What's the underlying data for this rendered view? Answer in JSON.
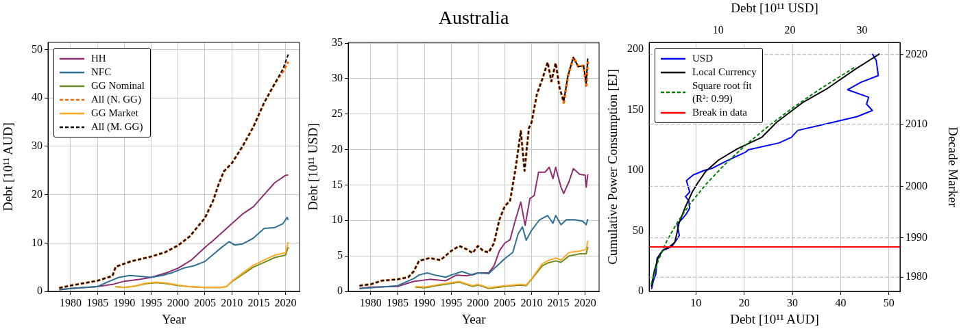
{
  "chart_data": [
    {
      "type": "line",
      "xlabel": "Year",
      "ylabel": "Debt [10¹¹ AUD]",
      "xlim": [
        1975.8,
        2022.6
      ],
      "xticks": [
        1980,
        1985,
        1990,
        1995,
        2000,
        2005,
        2010,
        2015,
        2020
      ],
      "ylim": [
        0,
        51.5
      ],
      "yticks": [
        0,
        10,
        20,
        30,
        40,
        50
      ],
      "grid": true,
      "legend": "top left",
      "marker": "none",
      "series": [
        {
          "name": "HH",
          "color": "#8e2c70",
          "line_style": "solid",
          "x": [
            1977.9,
            1980,
            1985,
            1988,
            1990,
            1993,
            1995,
            1998,
            2000,
            2002.5,
            2005,
            2006.5,
            2008,
            2010,
            2012,
            2014,
            2016,
            2018,
            2020,
            2020.5
          ],
          "values": [
            0.3,
            0.6,
            1.0,
            1.5,
            2.1,
            2.5,
            2.9,
            3.9,
            4.8,
            6.5,
            9.1,
            10.5,
            12,
            14,
            16,
            17.5,
            20,
            22.5,
            24,
            24.1
          ]
        },
        {
          "name": "NFC",
          "color": "#2e7090",
          "line_style": "solid",
          "x": [
            1977.9,
            1980,
            1985,
            1987,
            1989,
            1991,
            1993,
            1995,
            1997,
            1999,
            2001,
            2003,
            2005,
            2006.5,
            2008,
            2009.5,
            2010.5,
            2012,
            2014,
            2016,
            2018,
            2019.5,
            2020.3,
            2020.5
          ],
          "values": [
            0.4,
            0.6,
            1.0,
            2.0,
            2.9,
            3.3,
            3.1,
            2.9,
            3.3,
            3.9,
            4.8,
            5.3,
            6.2,
            7.6,
            9,
            10.3,
            9.6,
            9.8,
            11,
            13,
            13.2,
            14,
            15.3,
            14.8
          ]
        },
        {
          "name": "GG Nominal",
          "color": "#6b8e23",
          "line_style": "solid",
          "x": [
            1988.3,
            1990,
            1992,
            1994,
            1996,
            1998,
            2000,
            2002,
            2005,
            2008,
            2009,
            2010,
            2012,
            2014,
            2016,
            2018,
            2020,
            2020.5
          ],
          "values": [
            1.0,
            0.8,
            1.1,
            1.6,
            1.8,
            1.6,
            1.2,
            1.0,
            0.8,
            0.8,
            1.0,
            2.0,
            3.5,
            5,
            6,
            7,
            7.5,
            9.2
          ]
        },
        {
          "name": "All (N. GG)",
          "color": "#ff6600",
          "line_style": "dashed",
          "x": [
            1977.9,
            1980,
            1985,
            1987.8,
            1988.4,
            1991.2,
            1995,
            1997.6,
            2000,
            2002.2,
            2005,
            2006.5,
            2007.5,
            2008.5,
            2010,
            2012,
            2014,
            2016,
            2018,
            2019.5,
            2020.5
          ],
          "values": [
            0.7,
            1.2,
            2.2,
            3.2,
            5.1,
            6.2,
            7.2,
            8.1,
            9.5,
            11.4,
            15.2,
            18.7,
            22,
            24.8,
            26.5,
            30,
            34,
            39,
            43,
            45.5,
            47.5
          ]
        },
        {
          "name": "GG Market",
          "color": "#ffaa22",
          "line_style": "solid",
          "x": [
            1988.3,
            1990,
            1992,
            1994,
            1996,
            1998,
            2000,
            2002,
            2005,
            2008,
            2009,
            2010,
            2012,
            2014,
            2016,
            2018,
            2020,
            2020.5
          ],
          "values": [
            1.0,
            0.8,
            1.1,
            1.7,
            1.9,
            1.7,
            1.3,
            1.0,
            0.8,
            0.8,
            1.0,
            2.1,
            3.8,
            5.4,
            6.5,
            7.5,
            8,
            10.2
          ]
        },
        {
          "name": "All (M. GG)",
          "color": "#000000",
          "line_style": "dashed",
          "x": [
            1977.9,
            1980,
            1985,
            1987.8,
            1988.4,
            1991.2,
            1995,
            1997.6,
            2000,
            2002.2,
            2005,
            2006.5,
            2007.5,
            2008.5,
            2010,
            2012,
            2014,
            2016,
            2018,
            2019.5,
            2020.5
          ],
          "values": [
            0.7,
            1.2,
            2.2,
            3.2,
            5.1,
            6.2,
            7.2,
            8.1,
            9.5,
            11.4,
            15.2,
            18.7,
            22,
            24.8,
            26.5,
            30,
            34,
            39,
            43,
            46,
            49
          ]
        }
      ]
    },
    {
      "type": "line",
      "title": "Australia",
      "xlabel": "Year",
      "ylabel": "Debt [10¹¹ USD]",
      "xlim": [
        1975.8,
        2022.6
      ],
      "xticks": [
        1980,
        1985,
        1990,
        1995,
        2000,
        2005,
        2010,
        2015,
        2020
      ],
      "ylim": [
        0,
        35.1
      ],
      "yticks": [
        0,
        5,
        10,
        15,
        20,
        25,
        30,
        35
      ],
      "grid": true,
      "marker": "none",
      "series": [
        {
          "color": "#8e2c70",
          "line_style": "solid",
          "x": [
            1977.9,
            1980,
            1985,
            1988,
            1991,
            1994,
            1996,
            1998,
            2000,
            2002,
            2003,
            2004,
            2005,
            2006,
            2007,
            2008,
            2008.8,
            2009.7,
            2010.5,
            2011.3,
            2012.5,
            2013.3,
            2014,
            2014.5,
            2015.5,
            2016,
            2017,
            2017.8,
            2019,
            2020,
            2020.2,
            2020.5
          ],
          "values": [
            0.4,
            0.6,
            0.7,
            1.4,
            1.7,
            1.5,
            2.3,
            2.2,
            2.6,
            2.6,
            3.6,
            5.7,
            6.8,
            7.3,
            10.1,
            12.6,
            9.3,
            13.1,
            13.5,
            16.8,
            16.8,
            17.5,
            15.9,
            17.5,
            14.7,
            13.8,
            15.5,
            17.3,
            16.5,
            16.4,
            14.7,
            16.5
          ]
        },
        {
          "color": "#2e7090",
          "line_style": "solid",
          "x": [
            1977.9,
            1980,
            1985,
            1988,
            1989,
            1990.5,
            1992,
            1994,
            1995,
            1997,
            1999,
            2000,
            2002,
            2004,
            2005,
            2006.5,
            2007.5,
            2008.3,
            2009,
            2010,
            2011.5,
            2013,
            2014,
            2014.5,
            2015.5,
            2016.5,
            2018,
            2019.5,
            2020.2,
            2020.5
          ],
          "values": [
            0.4,
            0.5,
            0.8,
            1.8,
            2.3,
            2.6,
            2.3,
            2.0,
            2.3,
            2.8,
            2.3,
            2.6,
            2.5,
            3.9,
            4.6,
            5.5,
            8.1,
            9.1,
            7.2,
            8.6,
            10.1,
            10.7,
            9.6,
            10.7,
            9.4,
            10.1,
            10.1,
            9.9,
            9.4,
            10.2
          ]
        },
        {
          "color": "#6b8e23",
          "line_style": "solid",
          "x": [
            1988.3,
            1990,
            1993,
            1996.5,
            1999,
            2000,
            2002,
            2005,
            2008,
            2009,
            2010,
            2012,
            2013,
            2014.5,
            2015.5,
            2017,
            2019,
            2020.2,
            2020.5
          ],
          "values": [
            0.6,
            0.5,
            0.9,
            1.3,
            0.7,
            0.9,
            0.4,
            0.7,
            0.9,
            0.8,
            1.7,
            3.6,
            4.0,
            4.3,
            4.1,
            5.0,
            5.3,
            5.3,
            6.3
          ]
        },
        {
          "color": "#ff6600",
          "line_style": "dashed",
          "x": [
            1977.9,
            1980,
            1982,
            1985,
            1987,
            1988,
            1989,
            1991,
            1993,
            1995,
            1996.5,
            1998,
            1999,
            2000,
            2001,
            2002,
            2003,
            2004,
            2005,
            2006,
            2007,
            2008,
            2008.7,
            2009.5,
            2010,
            2011,
            2012,
            2013,
            2013.7,
            2014.5,
            2015.2,
            2016,
            2016.8,
            2017.8,
            2018.7,
            2019.7,
            2020.2,
            2020.5
          ],
          "values": [
            0.8,
            1.0,
            1.5,
            1.7,
            2.0,
            2.8,
            4.3,
            4.7,
            4.4,
            5.7,
            6.4,
            5.9,
            5.4,
            6.4,
            5.7,
            5.5,
            6.8,
            10.1,
            12.0,
            12.8,
            17.2,
            22.6,
            17.0,
            23.0,
            23.8,
            27.8,
            29.9,
            32.3,
            29.6,
            32.2,
            28.8,
            26.6,
            30.4,
            33.0,
            31.7,
            31.8,
            29.0,
            32.6
          ]
        },
        {
          "color": "#ffaa22",
          "line_style": "solid",
          "x": [
            1988.3,
            1990,
            1993,
            1996.5,
            1999,
            2000,
            2002,
            2005,
            2008,
            2009,
            2010,
            2012,
            2013,
            2014.5,
            2015.5,
            2017,
            2019,
            2020.2,
            2020.5
          ],
          "values": [
            0.7,
            0.6,
            1.0,
            1.4,
            0.8,
            1.0,
            0.5,
            0.8,
            1.0,
            0.9,
            1.8,
            3.9,
            4.3,
            4.7,
            4.4,
            5.5,
            5.7,
            5.9,
            7.2
          ]
        },
        {
          "color": "#000000",
          "line_style": "dashed",
          "x": [
            1977.9,
            1980,
            1982,
            1985,
            1987,
            1988,
            1989,
            1991,
            1993,
            1995,
            1996.5,
            1998,
            1999,
            2000,
            2001,
            2002,
            2003,
            2004,
            2005,
            2006,
            2007,
            2008,
            2008.7,
            2009.5,
            2010,
            2011,
            2012,
            2013,
            2013.7,
            2014.5,
            2015.2,
            2016,
            2016.8,
            2017.8,
            2018.7,
            2019.7,
            2020.2,
            2020.5
          ],
          "values": [
            0.8,
            1.0,
            1.5,
            1.7,
            2.0,
            2.8,
            4.3,
            4.7,
            4.4,
            5.7,
            6.4,
            5.9,
            5.4,
            6.4,
            5.7,
            5.5,
            6.8,
            10.1,
            12.0,
            12.8,
            17.2,
            22.6,
            17.0,
            23.0,
            23.8,
            27.8,
            29.9,
            32.3,
            29.6,
            32.2,
            28.8,
            26.8,
            30.4,
            33.0,
            31.7,
            31.8,
            29.4,
            33.0
          ]
        }
      ]
    },
    {
      "type": "line",
      "xlabel": "Debt [10¹¹ AUD]",
      "x2label": "Debt [10¹¹ USD]",
      "ylabel": "Cumulative Power Consumption [EJ]",
      "y2label": "Decade Marker",
      "xlim": [
        0.3,
        52.3
      ],
      "xticks": [
        10,
        20,
        30,
        40,
        50
      ],
      "x2lim": [
        0.4,
        35.3
      ],
      "x2ticks": [
        10,
        20,
        30
      ],
      "ylim": [
        0,
        205.7
      ],
      "yticks": [
        0,
        50,
        100,
        150,
        200
      ],
      "grid": "x",
      "legend": "top left",
      "marker": "none",
      "series": [
        {
          "name": "USD",
          "color": "#0000ff",
          "line_style": "solid",
          "axis": "x2",
          "x": [
            0.74,
            0.97,
            1.33,
            1.44,
            1.5,
            1.94,
            2.37,
            3.53,
            4.3,
            4.6,
            4.3,
            4.92,
            5.59,
            6.05,
            5.93,
            5.47,
            6.05,
            5.59,
            6.54,
            8.11,
            9.25,
            11.1,
            13.84,
            14.19,
            18.5,
            20.2,
            21.08,
            25.28,
            29.33,
            31.46,
            30.65,
            30.93,
            28.02,
            29.85,
            32.28,
            32.0,
            31.46
          ],
          "values": [
            1.9,
            8.5,
            14.2,
            21.7,
            27.3,
            31.1,
            34.0,
            36.8,
            43.4,
            46.2,
            55.6,
            59.4,
            64.1,
            68.9,
            74.6,
            78.3,
            82.1,
            91.5,
            96.2,
            100.0,
            101.9,
            107.6,
            115.1,
            117.0,
            122.7,
            127.4,
            133.0,
            138.7,
            144.4,
            149.4,
            154.7,
            160.4,
            166.6,
            172.7,
            178.3,
            190.6,
            196.3
          ]
        },
        {
          "name": "Local Currency",
          "color": "#000000",
          "line_style": "solid",
          "x": [
            0.77,
            1.33,
            2.12,
            3.1,
            4.52,
            5.62,
            6.06,
            6.52,
            7.82,
            9.24,
            10.38,
            12.02,
            14.68,
            18.64,
            23.68,
            26.74,
            32.02,
            37.0,
            43.2,
            48.1
          ],
          "values": [
            3.8,
            16.0,
            27.3,
            34.0,
            36.8,
            40.6,
            48.1,
            56.6,
            69.8,
            82.1,
            89.6,
            99.1,
            108.5,
            117.9,
            127.4,
            139.7,
            155.7,
            167.0,
            184.0,
            196.3
          ]
        },
        {
          "name": "Square root fit\n(R²: 0.99)",
          "color": "#008000",
          "line_style": "dashed",
          "x": [
            0.72,
            2.25,
            4,
            6.25,
            9,
            12.25,
            16,
            20.25,
            25,
            30.25,
            36,
            43.2
          ],
          "values": [
            5.7,
            26.2,
            41.9,
            57.7,
            73.4,
            89.2,
            104.9,
            120.7,
            136.4,
            152.2,
            167.9,
            185.9
          ]
        },
        {
          "name": "Break in data",
          "color": "#ff0000",
          "line_style": "solid",
          "x": [
            0.3,
            52.3
          ],
          "values": [
            36.8,
            36.8
          ]
        }
      ],
      "ref_lines": [
        {
          "axis": "y",
          "value": 11.7,
          "color": "#c0c0c0",
          "line_style": "dashed"
        },
        {
          "axis": "y",
          "value": 44.3,
          "color": "#c0c0c0",
          "line_style": "dashed"
        },
        {
          "axis": "y",
          "value": 86.8,
          "color": "#c0c0c0",
          "line_style": "dashed"
        },
        {
          "axis": "y",
          "value": 138.1,
          "color": "#c0c0c0",
          "line_style": "dashed"
        },
        {
          "axis": "y",
          "value": 195.7,
          "color": "#c0c0c0",
          "line_style": "dashed"
        }
      ],
      "annotations": [
        "1980",
        "1990",
        "2000",
        "2010",
        "2020"
      ]
    }
  ]
}
